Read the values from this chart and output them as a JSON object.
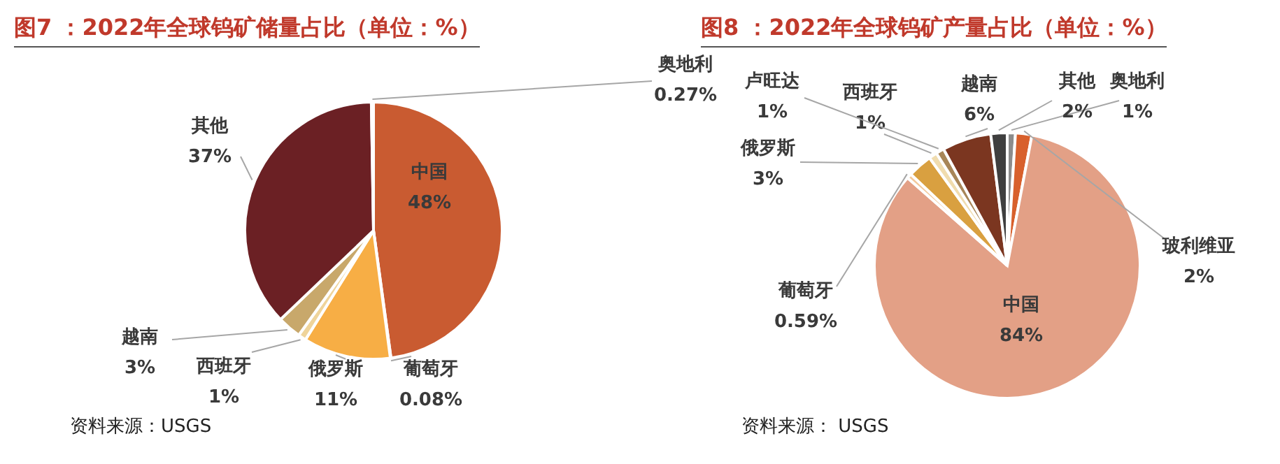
{
  "chart_data": [
    {
      "type": "pie",
      "title": "图7 ：2022年全球钨矿储量占比（单位：%）",
      "categories": [
        "中国",
        "葡萄牙",
        "俄罗斯",
        "西班牙",
        "越南",
        "其他",
        "奥地利"
      ],
      "values": [
        48,
        0.08,
        11,
        1,
        3,
        37,
        0.27
      ],
      "value_labels": [
        "48%",
        "0.08%",
        "11%",
        "1%",
        "3%",
        "37%",
        "0.27%"
      ],
      "colors": [
        "#c95b31",
        "#e8894f",
        "#f7ae45",
        "#efd49a",
        "#c8a86b",
        "#6b2024",
        "#bfbfbf"
      ],
      "legend": false,
      "annotations": [
        "资料来源：USGS"
      ]
    },
    {
      "type": "pie",
      "title": "图8 ：2022年全球钨矿产量占比（单位：%）",
      "categories": [
        "奥地利",
        "玻利维亚",
        "中国",
        "葡萄牙",
        "俄罗斯",
        "西班牙",
        "卢旺达",
        "越南",
        "其他"
      ],
      "values": [
        1,
        2,
        84,
        0.59,
        3,
        1,
        1,
        6,
        2
      ],
      "value_labels": [
        "1%",
        "2%",
        "84%",
        "0.59%",
        "3%",
        "1%",
        "1%",
        "6%",
        "2%"
      ],
      "colors": [
        "#8c8c8c",
        "#d8602c",
        "#e3a086",
        "#f3c89b",
        "#d9a040",
        "#f0dcae",
        "#a88658",
        "#7b3620",
        "#3f3f3f"
      ],
      "legend": false,
      "annotations": [
        "资料来源： USGS"
      ]
    }
  ]
}
